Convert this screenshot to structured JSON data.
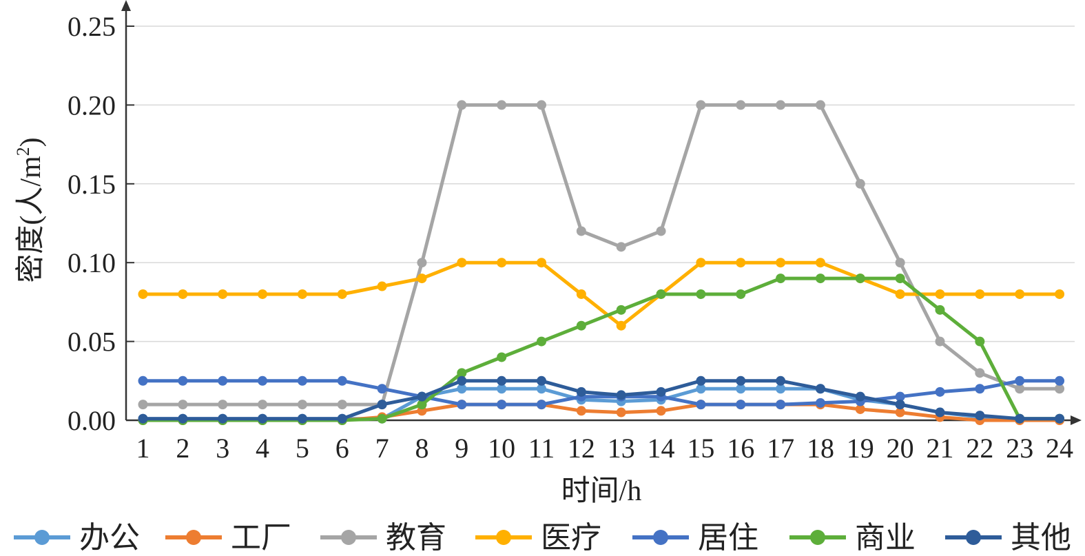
{
  "chart_data": {
    "type": "line",
    "xlabel": "时间/h",
    "ylabel_main": "密度",
    "ylabel_unit_open": "(人/m",
    "ylabel_unit_sup": "2",
    "ylabel_unit_close": ")",
    "ylim": [
      0,
      0.25
    ],
    "yticks": [
      "0.00",
      "0.05",
      "0.10",
      "0.15",
      "0.20",
      "0.25"
    ],
    "ytick_values": [
      0,
      0.05,
      0.1,
      0.15,
      0.2,
      0.25
    ],
    "categories": [
      "1",
      "2",
      "3",
      "4",
      "5",
      "6",
      "7",
      "8",
      "9",
      "10",
      "11",
      "12",
      "13",
      "14",
      "15",
      "16",
      "17",
      "18",
      "19",
      "20",
      "21",
      "22",
      "23",
      "24"
    ],
    "grid": "horizontal",
    "legend_position": "bottom",
    "series": [
      {
        "name": "办公",
        "color": "#5B9BD5",
        "values": [
          0.001,
          0.001,
          0.001,
          0.001,
          0.001,
          0.001,
          0.001,
          0.015,
          0.02,
          0.02,
          0.02,
          0.013,
          0.012,
          0.013,
          0.02,
          0.02,
          0.02,
          0.02,
          0.013,
          0.01,
          0.005,
          0.002,
          0.001,
          0.001
        ]
      },
      {
        "name": "工厂",
        "color": "#ED7D31",
        "values": [
          0,
          0,
          0,
          0,
          0,
          0,
          0.002,
          0.006,
          0.01,
          0.01,
          0.01,
          0.006,
          0.005,
          0.006,
          0.01,
          0.01,
          0.01,
          0.01,
          0.007,
          0.005,
          0.002,
          0,
          0,
          0
        ]
      },
      {
        "name": "教育",
        "color": "#A5A5A5",
        "values": [
          0.01,
          0.01,
          0.01,
          0.01,
          0.01,
          0.01,
          0.01,
          0.1,
          0.2,
          0.2,
          0.2,
          0.12,
          0.11,
          0.12,
          0.2,
          0.2,
          0.2,
          0.2,
          0.15,
          0.1,
          0.05,
          0.03,
          0.02,
          0.02
        ]
      },
      {
        "name": "医疗",
        "color": "#FFB000",
        "values": [
          0.08,
          0.08,
          0.08,
          0.08,
          0.08,
          0.08,
          0.085,
          0.09,
          0.1,
          0.1,
          0.1,
          0.08,
          0.06,
          0.08,
          0.1,
          0.1,
          0.1,
          0.1,
          0.09,
          0.08,
          0.08,
          0.08,
          0.08,
          0.08
        ]
      },
      {
        "name": "居住",
        "color": "#4472C4",
        "values": [
          0.025,
          0.025,
          0.025,
          0.025,
          0.025,
          0.025,
          0.02,
          0.015,
          0.01,
          0.01,
          0.01,
          0.015,
          0.015,
          0.015,
          0.01,
          0.01,
          0.01,
          0.011,
          0.012,
          0.015,
          0.018,
          0.02,
          0.025,
          0.025
        ]
      },
      {
        "name": "商业",
        "color": "#5DAE3A",
        "values": [
          0,
          0,
          0,
          0,
          0,
          0,
          0.001,
          0.01,
          0.03,
          0.04,
          0.05,
          0.06,
          0.07,
          0.08,
          0.08,
          0.08,
          0.09,
          0.09,
          0.09,
          0.09,
          0.07,
          0.05,
          0.001,
          0.001
        ]
      },
      {
        "name": "其他",
        "color": "#2E5C99",
        "values": [
          0.001,
          0.001,
          0.001,
          0.001,
          0.001,
          0.001,
          0.01,
          0.015,
          0.025,
          0.025,
          0.025,
          0.018,
          0.016,
          0.018,
          0.025,
          0.025,
          0.025,
          0.02,
          0.015,
          0.01,
          0.005,
          0.003,
          0.001,
          0.001
        ]
      }
    ]
  }
}
